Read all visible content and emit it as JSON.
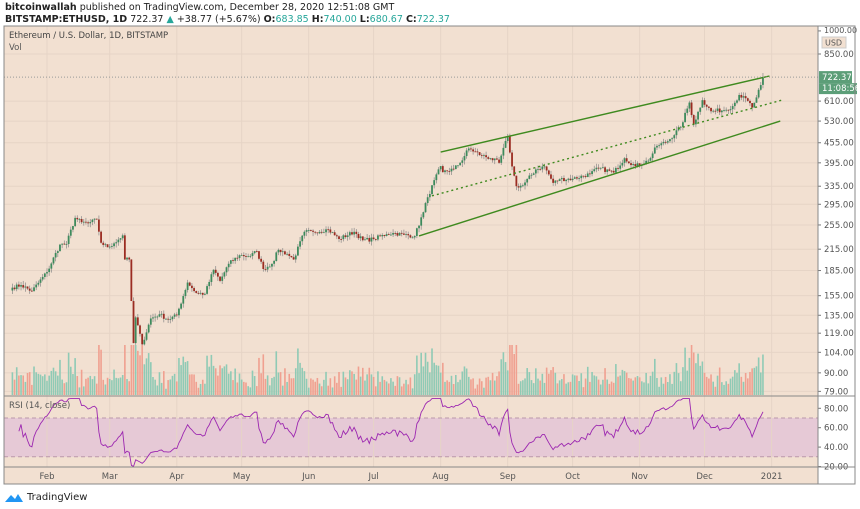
{
  "header": {
    "author": "bitcoinwallah",
    "published_text": "published on TradingView.com, December 28, 2020 12:51:08 GMT",
    "symbol": "BITSTAMP:ETHUSD, 1D",
    "last": "722.37",
    "change_arrow": "▲",
    "change": "+38.77 (+5.67%)",
    "o_label": "O:",
    "open": "683.85",
    "h_label": "H:",
    "high": "740.00",
    "l_label": "L:",
    "low": "680.67",
    "c_label": "C:",
    "close": "722.37"
  },
  "legend": {
    "title": "Ethereum / U.S. Dollar, 1D, BITSTAMP",
    "volume": "Vol",
    "rsi": "RSI (14, close)"
  },
  "price_axis": {
    "currency": "USD",
    "current_price_label": "722.37",
    "countdown_label": "11:08:56"
  },
  "footer": {
    "brand": "TradingView"
  },
  "colors": {
    "background": "#f2e0d1",
    "up": "#3d8a5c",
    "down": "#9b2c22",
    "trendline": "#3f8a1f",
    "rsi_line": "#9c27b0",
    "rsi_band": "#e6c9d6",
    "label_bg": "#5c9e78"
  },
  "chart_data": {
    "type": "candlestick",
    "symbol": "ETHUSD",
    "interval": "1D",
    "y_scale": "log",
    "ylim": [
      79,
      1000
    ],
    "y_ticks": [
      "1000.00",
      "850.00",
      "610.00",
      "530.00",
      "455.00",
      "395.00",
      "335.00",
      "295.00",
      "255.00",
      "215.00",
      "185.00",
      "155.00",
      "135.00",
      "119.00",
      "104.00",
      "90.00",
      "79.00"
    ],
    "x_ticks": [
      "Feb",
      "Mar",
      "Apr",
      "May",
      "Jun",
      "Jul",
      "Aug",
      "Sep",
      "Oct",
      "Nov",
      "Dec",
      "2021"
    ],
    "grid": true,
    "close_series": [
      [
        "2020-01-16",
        164
      ],
      [
        "2020-01-20",
        167
      ],
      [
        "2020-01-25",
        160
      ],
      [
        "2020-02-01",
        183
      ],
      [
        "2020-02-07",
        222
      ],
      [
        "2020-02-10",
        223
      ],
      [
        "2020-02-14",
        268
      ],
      [
        "2020-02-17",
        260
      ],
      [
        "2020-02-20",
        258
      ],
      [
        "2020-02-24",
        265
      ],
      [
        "2020-02-26",
        225
      ],
      [
        "2020-02-29",
        218
      ],
      [
        "2020-03-03",
        224
      ],
      [
        "2020-03-07",
        237
      ],
      [
        "2020-03-08",
        200
      ],
      [
        "2020-03-10",
        200
      ],
      [
        "2020-03-12",
        111
      ],
      [
        "2020-03-13",
        133
      ],
      [
        "2020-03-16",
        110
      ],
      [
        "2020-03-20",
        132
      ],
      [
        "2020-03-24",
        136
      ],
      [
        "2020-03-28",
        131
      ],
      [
        "2020-04-01",
        135
      ],
      [
        "2020-04-06",
        170
      ],
      [
        "2020-04-10",
        158
      ],
      [
        "2020-04-14",
        157
      ],
      [
        "2020-04-18",
        186
      ],
      [
        "2020-04-21",
        172
      ],
      [
        "2020-04-25",
        194
      ],
      [
        "2020-04-30",
        206
      ],
      [
        "2020-05-05",
        205
      ],
      [
        "2020-05-08",
        212
      ],
      [
        "2020-05-11",
        187
      ],
      [
        "2020-05-15",
        194
      ],
      [
        "2020-05-18",
        214
      ],
      [
        "2020-05-22",
        208
      ],
      [
        "2020-05-25",
        200
      ],
      [
        "2020-05-30",
        243
      ],
      [
        "2020-06-03",
        243
      ],
      [
        "2020-06-10",
        247
      ],
      [
        "2020-06-15",
        231
      ],
      [
        "2020-06-22",
        243
      ],
      [
        "2020-06-26",
        229
      ],
      [
        "2020-07-01",
        231
      ],
      [
        "2020-07-07",
        239
      ],
      [
        "2020-07-10",
        241
      ],
      [
        "2020-07-15",
        238
      ],
      [
        "2020-07-20",
        236
      ],
      [
        "2020-07-24",
        279
      ],
      [
        "2020-07-26",
        310
      ],
      [
        "2020-08-01",
        386
      ],
      [
        "2020-08-02",
        370
      ],
      [
        "2020-08-07",
        378
      ],
      [
        "2020-08-10",
        395
      ],
      [
        "2020-08-14",
        437
      ],
      [
        "2020-08-20",
        416
      ],
      [
        "2020-08-24",
        408
      ],
      [
        "2020-08-28",
        395
      ],
      [
        "2020-09-01",
        477
      ],
      [
        "2020-09-03",
        385
      ],
      [
        "2020-09-05",
        335
      ],
      [
        "2020-09-08",
        337
      ],
      [
        "2020-09-14",
        377
      ],
      [
        "2020-09-18",
        385
      ],
      [
        "2020-09-22",
        343
      ],
      [
        "2020-09-25",
        352
      ],
      [
        "2020-10-01",
        353
      ],
      [
        "2020-10-09",
        365
      ],
      [
        "2020-10-13",
        381
      ],
      [
        "2020-10-20",
        369
      ],
      [
        "2020-10-25",
        408
      ],
      [
        "2020-10-30",
        386
      ],
      [
        "2020-11-05",
        401
      ],
      [
        "2020-11-09",
        445
      ],
      [
        "2020-11-14",
        460
      ],
      [
        "2020-11-20",
        509
      ],
      [
        "2020-11-24",
        604
      ],
      [
        "2020-11-26",
        518
      ],
      [
        "2020-11-30",
        614
      ],
      [
        "2020-12-04",
        568
      ],
      [
        "2020-12-10",
        573
      ],
      [
        "2020-12-14",
        589
      ],
      [
        "2020-12-17",
        637
      ],
      [
        "2020-12-21",
        611
      ],
      [
        "2020-12-23",
        583
      ],
      [
        "2020-12-25",
        626
      ],
      [
        "2020-12-27",
        683
      ],
      [
        "2020-12-28",
        722.37
      ]
    ],
    "trendlines": [
      {
        "style": "solid",
        "from": [
          "2020-08-01",
          426
        ],
        "to": [
          "2020-12-31",
          728
        ]
      },
      {
        "style": "dotted",
        "from": [
          "2020-07-28",
          313
        ],
        "to": [
          "2021-01-06",
          615
        ]
      },
      {
        "style": "solid",
        "from": [
          "2020-07-22",
          236
        ],
        "to": [
          "2021-01-05",
          530
        ]
      }
    ],
    "rsi": {
      "period": 14,
      "ylim": [
        20,
        90
      ],
      "y_ticks": [
        "80.00",
        "60.00",
        "40.00",
        "20.00"
      ],
      "band": [
        30,
        70
      ]
    }
  }
}
